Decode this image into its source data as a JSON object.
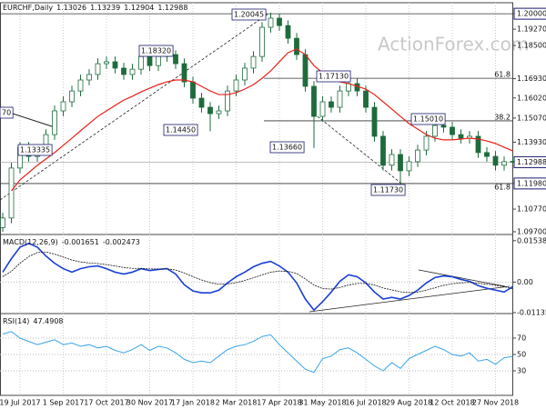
{
  "chart_data": {
    "type": "candlestick",
    "symbol": "EURCHF,Daily",
    "watermark": "ActionForex.com",
    "candle_color": "#1e6b3c",
    "categories": [
      null,
      null,
      "19 Jul 2017",
      null,
      null,
      null,
      null,
      "1 Sep 2017",
      null,
      null,
      null,
      null,
      "17 Oct 2017",
      null,
      null,
      null,
      null,
      "30 Nov 2017",
      null,
      null,
      null,
      null,
      "17 Jan 2018",
      null,
      null,
      null,
      null,
      "2 Mar 2018",
      null,
      null,
      null,
      null,
      "17 Apr 2018",
      null,
      null,
      null,
      null,
      "31 May 2018",
      null,
      null,
      null,
      null,
      "16 Jul 2018",
      null,
      null,
      null,
      null,
      "29 Aug 2018",
      null,
      null,
      null,
      null,
      "12 Oct 2018",
      null,
      null,
      null,
      null,
      "27 Nov 2018",
      null,
      null
    ],
    "open": [
      1.099,
      1.1035,
      1.1271,
      1.1369,
      1.1326,
      1.1356,
      1.1429,
      1.1541,
      1.1584,
      1.1635,
      1.1687,
      1.1713,
      1.1764,
      1.1773,
      1.1743,
      1.1713,
      1.1738,
      1.1798,
      1.1755,
      1.1798,
      1.1807,
      1.1764,
      1.1678,
      1.1601,
      1.1558,
      1.1528,
      1.1541,
      1.1635,
      1.1687,
      1.1743,
      1.1798,
      1.1936,
      1.1979,
      1.1944,
      1.1884,
      1.1807,
      1.1657,
      1.1515,
      1.1584,
      1.1558,
      1.1635,
      1.167,
      1.1635,
      1.1558,
      1.1421,
      1.1284,
      1.1335,
      1.1258,
      1.1301,
      1.1356,
      1.1421,
      1.1472,
      1.1464,
      1.1429,
      1.1412,
      1.1421,
      1.1344,
      1.1326,
      1.1284,
      1.13026
    ],
    "high": [
      1.106,
      1.1296,
      1.1394,
      1.1394,
      1.1381,
      1.1454,
      1.1566,
      1.1609,
      1.166,
      1.1712,
      1.1738,
      1.1789,
      1.1798,
      1.1798,
      1.1768,
      1.1763,
      1.1832,
      1.1823,
      1.1823,
      1.183,
      1.1827,
      1.1789,
      1.1703,
      1.1626,
      1.1583,
      1.1566,
      1.166,
      1.1712,
      1.1768,
      1.1823,
      1.1961,
      1.20045,
      1.2,
      1.1969,
      1.1909,
      1.1832,
      1.1682,
      1.1609,
      1.1609,
      1.166,
      1.1713,
      1.1695,
      1.166,
      1.1583,
      1.1446,
      1.136,
      1.136,
      1.1326,
      1.1381,
      1.1446,
      1.1501,
      1.1497,
      1.1489,
      1.1454,
      1.1446,
      1.1446,
      1.1369,
      1.1351,
      1.1326,
      1.13239
    ],
    "low": [
      1.097,
      1.101,
      1.1246,
      1.1301,
      1.1301,
      1.1331,
      1.1404,
      1.1516,
      1.1559,
      1.161,
      1.1662,
      1.1688,
      1.1739,
      1.1718,
      1.1688,
      1.1688,
      1.1713,
      1.173,
      1.173,
      1.1773,
      1.1739,
      1.1653,
      1.1576,
      1.1533,
      1.1445,
      1.1503,
      1.1516,
      1.161,
      1.1662,
      1.1718,
      1.1773,
      1.1911,
      1.1919,
      1.1859,
      1.1782,
      1.1632,
      1.1366,
      1.149,
      1.1533,
      1.1533,
      1.161,
      1.161,
      1.1533,
      1.1396,
      1.1259,
      1.1259,
      1.1173,
      1.1233,
      1.1276,
      1.1331,
      1.1396,
      1.1439,
      1.1404,
      1.1387,
      1.1387,
      1.1319,
      1.1301,
      1.1259,
      1.1259,
      1.12904
    ],
    "close": [
      1.1035,
      1.1271,
      1.1369,
      1.1326,
      1.1356,
      1.1429,
      1.1541,
      1.1584,
      1.1635,
      1.1687,
      1.1713,
      1.1764,
      1.1773,
      1.1743,
      1.1713,
      1.1738,
      1.1798,
      1.1755,
      1.1798,
      1.1807,
      1.1764,
      1.1678,
      1.1601,
      1.1558,
      1.1528,
      1.1541,
      1.1635,
      1.1687,
      1.1743,
      1.1798,
      1.1936,
      1.1979,
      1.1944,
      1.1884,
      1.1807,
      1.1657,
      1.1515,
      1.1584,
      1.1558,
      1.1635,
      1.167,
      1.1635,
      1.1558,
      1.1421,
      1.1284,
      1.1335,
      1.1258,
      1.1301,
      1.1356,
      1.1421,
      1.1472,
      1.1464,
      1.1429,
      1.1412,
      1.1421,
      1.1344,
      1.1326,
      1.1284,
      1.1301,
      1.12988
    ],
    "ma": {
      "color": "#e8201a",
      "values": [
        null,
        1.1163,
        1.1215,
        1.1249,
        1.1284,
        1.1314,
        1.1344,
        1.1378,
        1.1412,
        1.1447,
        1.1481,
        1.1515,
        1.1541,
        1.1567,
        1.1592,
        1.161,
        1.1631,
        1.1648,
        1.1665,
        1.1678,
        1.1687,
        1.1687,
        1.1678,
        1.1657,
        1.1635,
        1.1618,
        1.1618,
        1.1627,
        1.1644,
        1.1665,
        1.1695,
        1.173,
        1.1773,
        1.1816,
        1.1833,
        1.1807,
        1.1755,
        1.1721,
        1.1695,
        1.1678,
        1.167,
        1.1657,
        1.1644,
        1.1618,
        1.1584,
        1.155,
        1.1515,
        1.1481,
        1.1455,
        1.1429,
        1.1412,
        1.1404,
        1.1404,
        1.1408,
        1.1412,
        1.1408,
        1.1399,
        1.1387,
        1.1369,
        1.1352
      ]
    },
    "ylim": [
      1.0957,
      1.2052
    ],
    "yticks": [
      {
        "value": 1.2,
        "label": "1.20000",
        "boxed": true
      },
      {
        "value": 1.1927,
        "label": "1.19270"
      },
      {
        "value": 1.185,
        "label": "1.18500"
      },
      {
        "value": 1.1693,
        "label": "1.16930"
      },
      {
        "value": 1.1602,
        "label": "1.16020"
      },
      {
        "value": 1.1507,
        "label": "1.15070"
      },
      {
        "value": 1.1393,
        "label": "1.13930"
      },
      {
        "value": 1.1198,
        "label": "1.11980",
        "boxed": true
      },
      {
        "value": 1.1077,
        "label": "1.10770"
      },
      {
        "value": 1.097,
        "label": "1.09700"
      }
    ],
    "fib_levels": [
      {
        "ratio": 61.8,
        "price": 1.1695
      },
      {
        "ratio": 38.2,
        "price": 1.1494
      },
      {
        "ratio": 61.8,
        "price": 1.1198
      }
    ],
    "annotations": [
      "1.20045",
      "1.18320",
      "1.14450",
      "1.13660",
      "1.17130",
      "1.15010",
      "1.11730",
      "1.13335",
      "70"
    ],
    "macd": {
      "title": "MACD(12,26,9)",
      "color": "#1a3fd6",
      "signal_color": "#111111",
      "values": [
        0.0037,
        0.0087,
        0.013,
        0.0144,
        0.013,
        0.0097,
        0.007,
        0.005,
        0.0037,
        0.005,
        0.0057,
        0.006,
        0.005,
        0.0037,
        0.003,
        0.0037,
        0.005,
        0.0043,
        0.0047,
        0.005,
        0.003,
        -0.001,
        -0.0033,
        -0.004,
        -0.004,
        -0.003,
        -0.0003,
        0.002,
        0.0037,
        0.0057,
        0.007,
        0.0077,
        0.006,
        0.0037,
        -0.0003,
        -0.0063,
        -0.0104,
        -0.0073,
        -0.0037,
        0.0003,
        0.0027,
        0.002,
        -0.0003,
        -0.0037,
        -0.0063,
        -0.0057,
        -0.0063,
        -0.005,
        -0.003,
        -0.0003,
        0.0017,
        0.0023,
        0.002,
        0.001,
        0.0003,
        -0.0013,
        -0.0023,
        -0.003,
        -0.0037,
        -0.001651
      ],
      "signal": [
        0.002,
        0.004,
        0.007,
        0.0095,
        0.011,
        0.0112,
        0.0104,
        0.0093,
        0.0082,
        0.0075,
        0.0071,
        0.0069,
        0.0065,
        0.006,
        0.0054,
        0.0051,
        0.0051,
        0.0049,
        0.0049,
        0.0049,
        0.0045,
        0.0034,
        0.002,
        0.0008,
        -0.0002,
        -0.0008,
        -0.0007,
        -0.0002,
        0.0006,
        0.0016,
        0.0027,
        0.0037,
        0.0041,
        0.004,
        0.0032,
        0.0012,
        -0.0011,
        -0.0024,
        -0.0026,
        -0.002,
        -0.0011,
        -0.0005,
        -0.0005,
        -0.0011,
        -0.0022,
        -0.0029,
        -0.0036,
        -0.0039,
        -0.0037,
        -0.003,
        -0.0021,
        -0.0012,
        -0.0006,
        -0.0003,
        -0.0001,
        -0.0004,
        -0.0008,
        -0.0012,
        -0.0017,
        -0.002473
      ],
      "ylim": [
        -0.0117,
        0.0177
      ],
      "yticks": [
        0.015385,
        {
          "value": 0,
          "label": "0.00"
        },
        -0.011352
      ]
    },
    "rsi": {
      "title": "RSI(14)",
      "color": "#3ba4e8",
      "values": [
        75,
        78,
        70,
        66,
        62,
        65,
        68,
        62,
        64,
        60,
        62,
        58,
        60,
        55,
        52,
        56,
        62,
        55,
        60,
        58,
        52,
        44,
        40,
        42,
        40,
        48,
        56,
        60,
        62,
        66,
        72,
        74,
        62,
        52,
        42,
        32,
        28,
        45,
        48,
        56,
        58,
        52,
        44,
        36,
        30,
        40,
        33,
        45,
        50,
        55,
        60,
        56,
        50,
        48,
        52,
        42,
        44,
        38,
        46,
        47.4908
      ],
      "ylim": [
        0,
        100
      ],
      "yticks": [
        70,
        50,
        30
      ]
    }
  }
}
